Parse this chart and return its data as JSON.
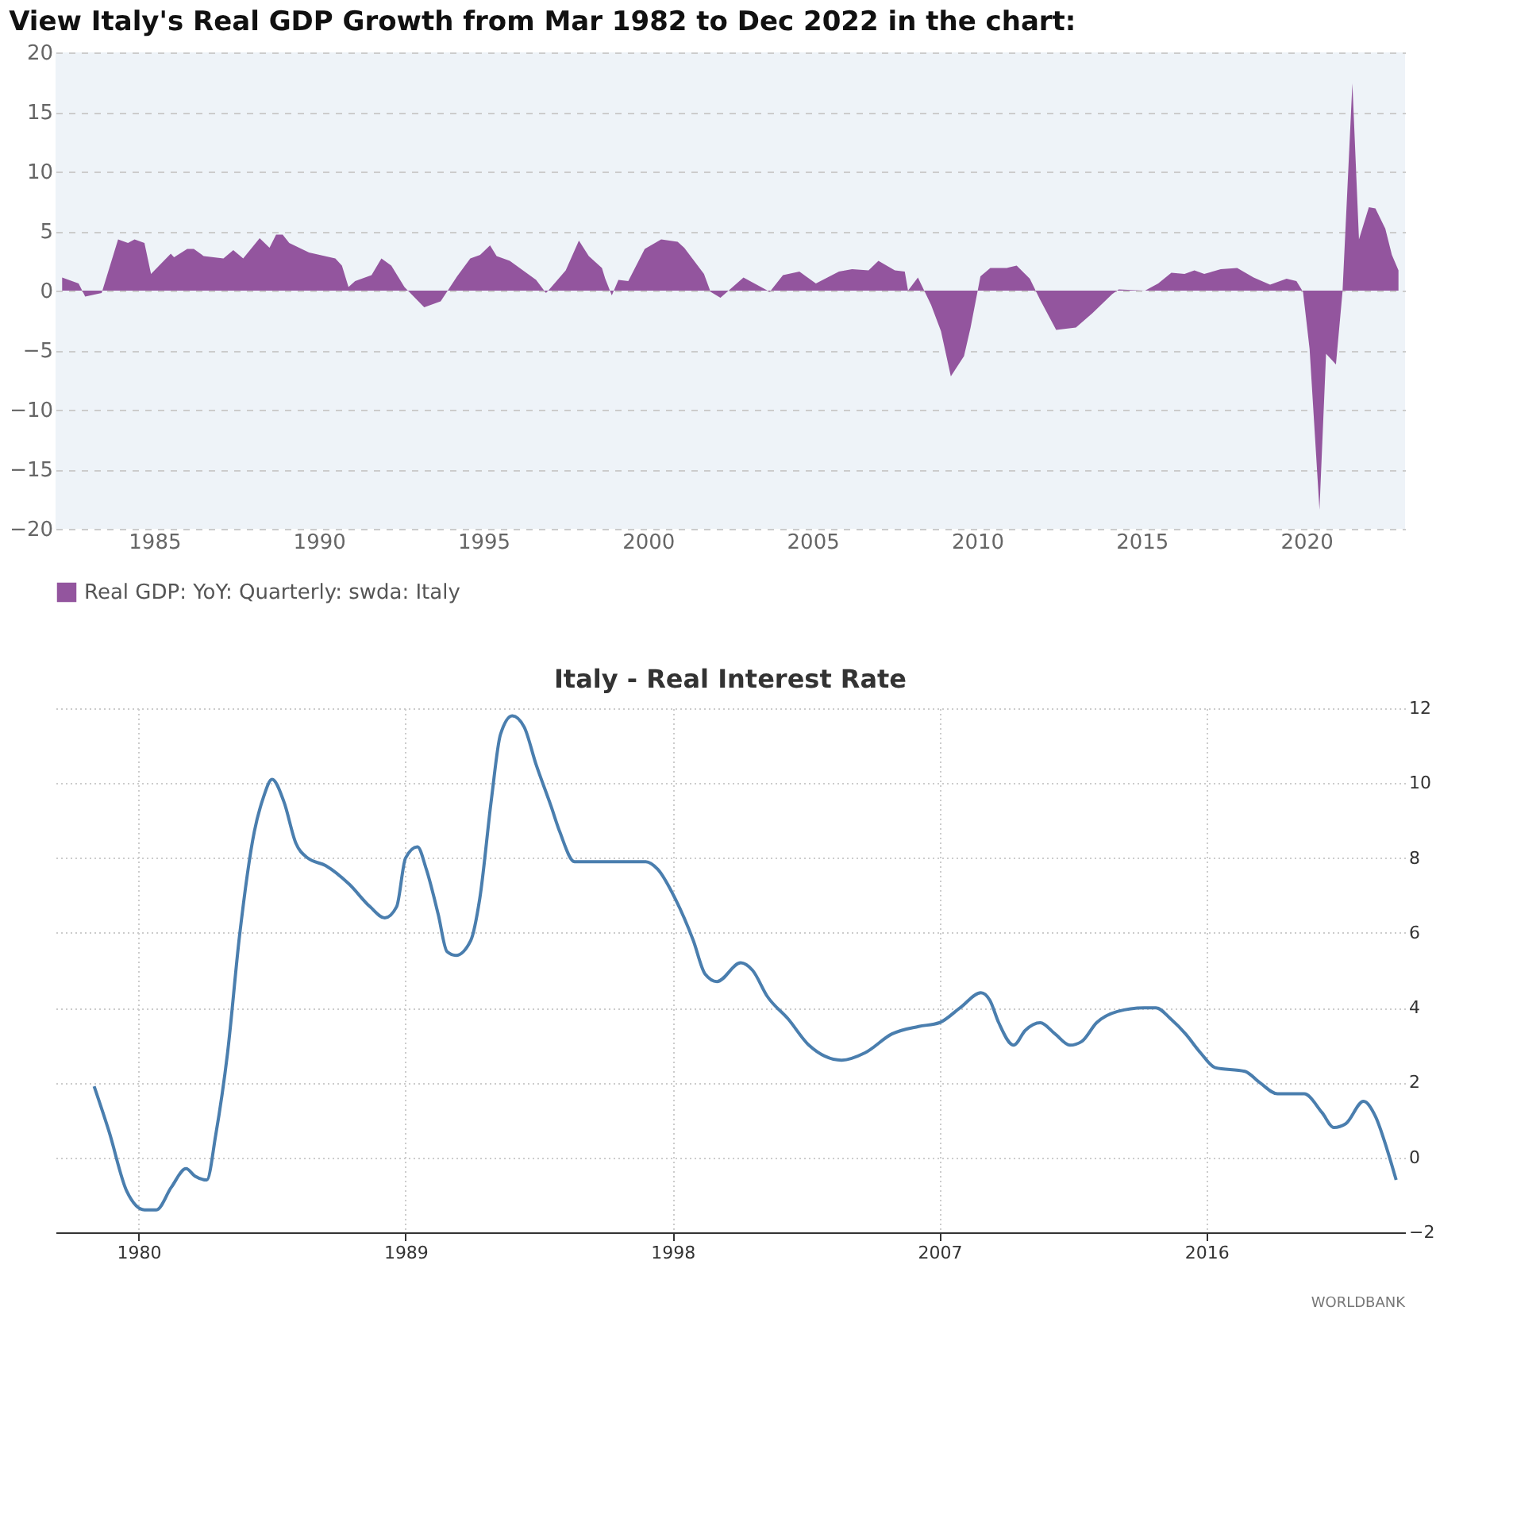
{
  "chart_data": [
    {
      "type": "area",
      "title": "View Italy's Real GDP Growth from Mar 1982 to Dec 2022 in the chart:",
      "xlim": [
        1982,
        2023
      ],
      "xticks": [
        1985,
        1990,
        1995,
        2000,
        2005,
        2010,
        2015,
        2020
      ],
      "ylim": [
        -20,
        20
      ],
      "yticks": [
        -20,
        -15,
        -10,
        -5,
        0,
        5,
        10,
        15,
        20
      ],
      "grid": "y",
      "legend": "bottom",
      "x": [
        1982.2,
        1982.7,
        1982.9,
        1983.4,
        1983.9,
        1984.2,
        1984.4,
        1984.7,
        1984.9,
        1985.5,
        1985.6,
        1986.0,
        1986.2,
        1986.5,
        1987.1,
        1987.4,
        1987.7,
        1988.2,
        1988.5,
        1988.7,
        1988.9,
        1989.1,
        1989.7,
        1990.5,
        1990.7,
        1990.9,
        1991.1,
        1991.6,
        1991.9,
        1992.2,
        1992.6,
        1993.2,
        1993.7,
        1994.2,
        1994.6,
        1994.9,
        1995.2,
        1995.4,
        1995.8,
        1996.6,
        1996.9,
        1997.0,
        1997.5,
        1997.9,
        1998.2,
        1998.6,
        1998.7,
        1998.9,
        1999.1,
        1999.4,
        1999.9,
        2000.4,
        2000.9,
        2001.1,
        2001.7,
        2001.9,
        2002.2,
        2002.9,
        2003.7,
        2004.1,
        2004.6,
        2005.1,
        2005.8,
        2006.2,
        2006.7,
        2007.0,
        2007.5,
        2007.8,
        2007.9,
        2008.2,
        2008.6,
        2008.9,
        2009.2,
        2009.6,
        2009.8,
        2010.1,
        2010.4,
        2010.9,
        2011.2,
        2011.6,
        2011.9,
        2012.4,
        2013.0,
        2013.5,
        2014.1,
        2014.3,
        2015.1,
        2015.5,
        2015.9,
        2016.3,
        2016.6,
        2016.9,
        2017.4,
        2017.9,
        2018.4,
        2018.9,
        2019.4,
        2019.7,
        2019.9,
        2020.1,
        2020.4,
        2020.6,
        2020.9,
        2021.1,
        2021.4,
        2021.6,
        2021.9,
        2022.1,
        2022.4,
        2022.6,
        2022.8
      ],
      "series": [
        {
          "name": "Real GDP: YoY: Quarterly: swda: Italy",
          "color": "#93559e",
          "values": [
            1.1,
            0.6,
            -0.5,
            -0.2,
            4.3,
            4.0,
            4.3,
            4.0,
            1.4,
            3.1,
            2.8,
            3.5,
            3.5,
            2.9,
            2.7,
            3.4,
            2.7,
            4.4,
            3.6,
            4.7,
            4.7,
            4.0,
            3.2,
            2.7,
            2.1,
            0.3,
            0.8,
            1.3,
            2.7,
            2.1,
            0.3,
            -1.4,
            -0.9,
            1.2,
            2.7,
            3.0,
            3.8,
            2.9,
            2.5,
            0.9,
            -0.2,
            0.1,
            1.7,
            4.2,
            2.9,
            1.9,
            1.0,
            -0.4,
            0.9,
            0.8,
            3.5,
            4.3,
            4.1,
            3.6,
            1.4,
            -0.1,
            -0.6,
            1.1,
            -0.1,
            1.3,
            1.6,
            0.6,
            1.6,
            1.8,
            1.7,
            2.5,
            1.7,
            1.6,
            0.0,
            1.1,
            -1.2,
            -3.4,
            -7.2,
            -5.5,
            -3.1,
            1.2,
            1.9,
            1.9,
            2.1,
            1.0,
            -0.7,
            -3.3,
            -3.1,
            -1.9,
            -0.3,
            0.1,
            0.0,
            0.6,
            1.5,
            1.4,
            1.7,
            1.4,
            1.8,
            1.9,
            1.1,
            0.5,
            1.0,
            0.8,
            -0.1,
            -4.9,
            -18.4,
            -5.3,
            -6.2,
            -0.1,
            17.4,
            4.3,
            7.0,
            6.9,
            5.2,
            3.0,
            1.7
          ]
        }
      ]
    },
    {
      "type": "line",
      "title": "Italy - Real Interest Rate",
      "xlim": [
        1977.2,
        2022.7
      ],
      "xticks": [
        1980,
        1989,
        1998,
        2007,
        2016
      ],
      "ylim": [
        -2,
        12
      ],
      "yticks": [
        -2,
        0,
        2,
        4,
        6,
        8,
        10,
        12
      ],
      "grid": true,
      "annotations": [
        "WORLDBANK"
      ],
      "x": [
        1978.5,
        1979.0,
        1979.6,
        1980.2,
        1980.6,
        1981.1,
        1981.6,
        1981.9,
        1982.3,
        1982.6,
        1983.0,
        1983.4,
        1983.9,
        1984.2,
        1984.5,
        1984.9,
        1985.3,
        1985.7,
        1986.3,
        1987.1,
        1987.8,
        1988.3,
        1988.7,
        1989.0,
        1989.4,
        1989.7,
        1990.1,
        1990.4,
        1990.7,
        1991.2,
        1991.5,
        1991.9,
        1992.2,
        1992.6,
        1993.0,
        1993.4,
        1993.9,
        1994.2,
        1994.7,
        1995.8,
        1997.1,
        1997.5,
        1998.1,
        1998.7,
        1999.1,
        1999.5,
        2000.3,
        2000.7,
        2001.2,
        2001.9,
        2002.6,
        2003.7,
        2004.5,
        2005.4,
        2006.3,
        2007.0,
        2007.7,
        2008.4,
        2008.7,
        2009.0,
        2009.5,
        2009.9,
        2010.4,
        2010.9,
        2011.4,
        2011.8,
        2012.3,
        2013.0,
        2013.9,
        2014.3,
        2014.8,
        2015.3,
        2015.8,
        2016.3,
        2017.3,
        2017.8,
        2018.4,
        2019.3,
        2019.9,
        2020.3,
        2020.7,
        2021.3,
        2021.7,
        2022.1,
        2022.4
      ],
      "series": [
        {
          "color": "#4a7eae",
          "values": [
            1.9,
            0.7,
            -0.9,
            -1.4,
            -1.4,
            -0.8,
            -0.3,
            -0.5,
            -0.6,
            0.6,
            2.8,
            5.9,
            8.7,
            9.6,
            10.1,
            9.5,
            8.4,
            8.0,
            7.8,
            7.3,
            6.7,
            6.4,
            6.7,
            8.0,
            8.3,
            7.7,
            6.5,
            5.5,
            5.4,
            5.8,
            6.9,
            9.6,
            11.3,
            11.8,
            11.5,
            10.5,
            9.4,
            8.7,
            7.9,
            7.9,
            7.9,
            7.7,
            6.9,
            5.8,
            4.9,
            4.7,
            5.2,
            5.0,
            4.3,
            3.7,
            3.0,
            2.6,
            2.8,
            3.3,
            3.5,
            3.6,
            4.0,
            4.4,
            4.2,
            3.6,
            3.0,
            3.4,
            3.6,
            3.3,
            3.0,
            3.1,
            3.6,
            3.9,
            4.0,
            4.0,
            3.7,
            3.3,
            2.8,
            2.4,
            2.3,
            2.0,
            1.7,
            1.7,
            1.2,
            0.8,
            0.9,
            1.5,
            1.1,
            0.2,
            -0.6
          ]
        }
      ]
    }
  ]
}
